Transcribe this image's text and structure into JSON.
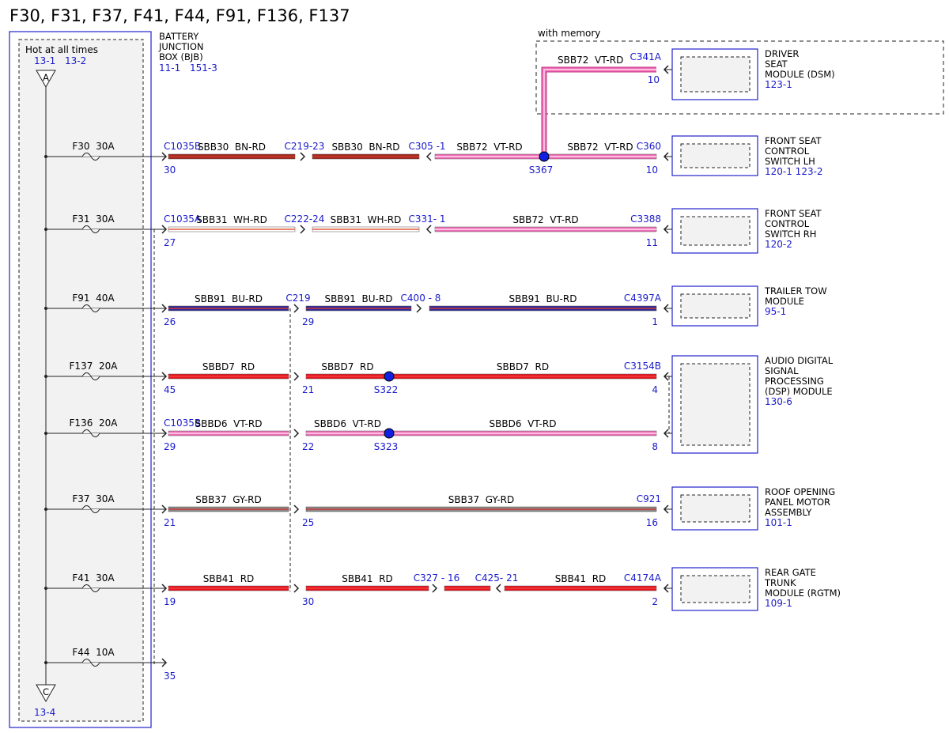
{
  "title": "F30, F31, F37, F41, F44, F91, F136, F137",
  "bjb": {
    "header": "Hot at all times",
    "refs": [
      "13-1",
      "13-2"
    ],
    "top_connector": "A",
    "bottom_connector": "C",
    "bottom_ref": "13-4",
    "label": [
      "BATTERY",
      "JUNCTION",
      "BOX (BJB)"
    ],
    "label_refs": [
      "11-1",
      "151-3"
    ]
  },
  "memory_group": {
    "label": "with memory",
    "wire": "SBB72  VT-RD",
    "connector": "C341A",
    "pin": "10"
  },
  "modules": [
    {
      "name": [
        "DRIVER",
        "SEAT",
        "MODULE (DSM)"
      ],
      "ref": "123-1"
    },
    {
      "name": [
        "FRONT SEAT",
        "CONTROL",
        "SWITCH LH"
      ],
      "ref": "120-1 123-2"
    },
    {
      "name": [
        "FRONT SEAT",
        "CONTROL",
        "SWITCH RH"
      ],
      "ref": "120-2"
    },
    {
      "name": [
        "TRAILER TOW",
        "MODULE"
      ],
      "ref": "95-1"
    },
    {
      "name": [
        "AUDIO DIGITAL",
        "SIGNAL",
        "PROCESSING",
        "(DSP) MODULE"
      ],
      "ref": "130-6"
    },
    {
      "name": [
        "ROOF OPENING",
        "PANEL MOTOR",
        "ASSEMBLY"
      ],
      "ref": "101-1"
    },
    {
      "name": [
        "REAR GATE",
        "TRUNK",
        "MODULE (RGTM)"
      ],
      "ref": "109-1"
    }
  ],
  "circuits": [
    {
      "fuse": "F30  30A",
      "start": {
        "connector": "C1035B",
        "pin": "30"
      },
      "wires": [
        "SBB30  BN-RD",
        "SBB30  BN-RD",
        "SBB72  VT-RD",
        "SBB72  VT-RD"
      ],
      "joints": [
        {
          "name": "C219-23"
        },
        {
          "name": "C305 -1"
        },
        {
          "name": "S367"
        }
      ],
      "end": {
        "connector": "C360",
        "pin": "10"
      }
    },
    {
      "fuse": "F31  30A",
      "start": {
        "connector": "C1035A",
        "pin": "27"
      },
      "wires": [
        "SBB31  WH-RD",
        "SBB31  WH-RD",
        "SBB72  VT-RD"
      ],
      "joints": [
        {
          "name": "C222-24"
        },
        {
          "name": "C331- 1"
        }
      ],
      "end": {
        "connector": "C3388",
        "pin": "11"
      }
    },
    {
      "fuse": "F91  40A",
      "start": {
        "pin": "26"
      },
      "wires": [
        "SBB91  BU-RD",
        "SBB91  BU-RD",
        "SBB91  BU-RD"
      ],
      "joints": [
        {
          "name": "C219",
          "pin": "29"
        },
        {
          "name": "C400 - 8"
        }
      ],
      "end": {
        "connector": "C4397A",
        "pin": "1"
      }
    },
    {
      "fuse": "F137  20A",
      "start": {
        "pin": "45"
      },
      "wires": [
        "SBBD7  RD",
        "SBBD7  RD",
        "SBBD7  RD"
      ],
      "joints": [
        {
          "pin": "21"
        },
        {
          "name": "S322"
        }
      ],
      "end": {
        "connector": "C3154B",
        "pin": "4"
      }
    },
    {
      "fuse": "F136  20A",
      "start": {
        "connector": "C1035B",
        "pin": "29"
      },
      "wires": [
        "SBBD6  VT-RD",
        "SBBD6  VT-RD",
        "SBBD6  VT-RD"
      ],
      "joints": [
        {
          "pin": "22"
        },
        {
          "name": "S323"
        }
      ],
      "end": {
        "pin": "8"
      }
    },
    {
      "fuse": "F37  30A",
      "start": {
        "pin": "21"
      },
      "wires": [
        "SBB37  GY-RD",
        "SBB37  GY-RD"
      ],
      "joints": [
        {
          "pin": "25"
        }
      ],
      "end": {
        "connector": "C921",
        "pin": "16"
      }
    },
    {
      "fuse": "F41  30A",
      "start": {
        "pin": "19"
      },
      "wires": [
        "SBB41  RD",
        "SBB41  RD",
        "SBB41  RD"
      ],
      "joints": [
        {
          "pin": "30"
        },
        {
          "name": "C327 - 16"
        },
        {
          "name": "C425- 21"
        }
      ],
      "end": {
        "connector": "C4174A",
        "pin": "2"
      }
    },
    {
      "fuse": "F44  10A",
      "start": {
        "pin": "35"
      }
    }
  ]
}
